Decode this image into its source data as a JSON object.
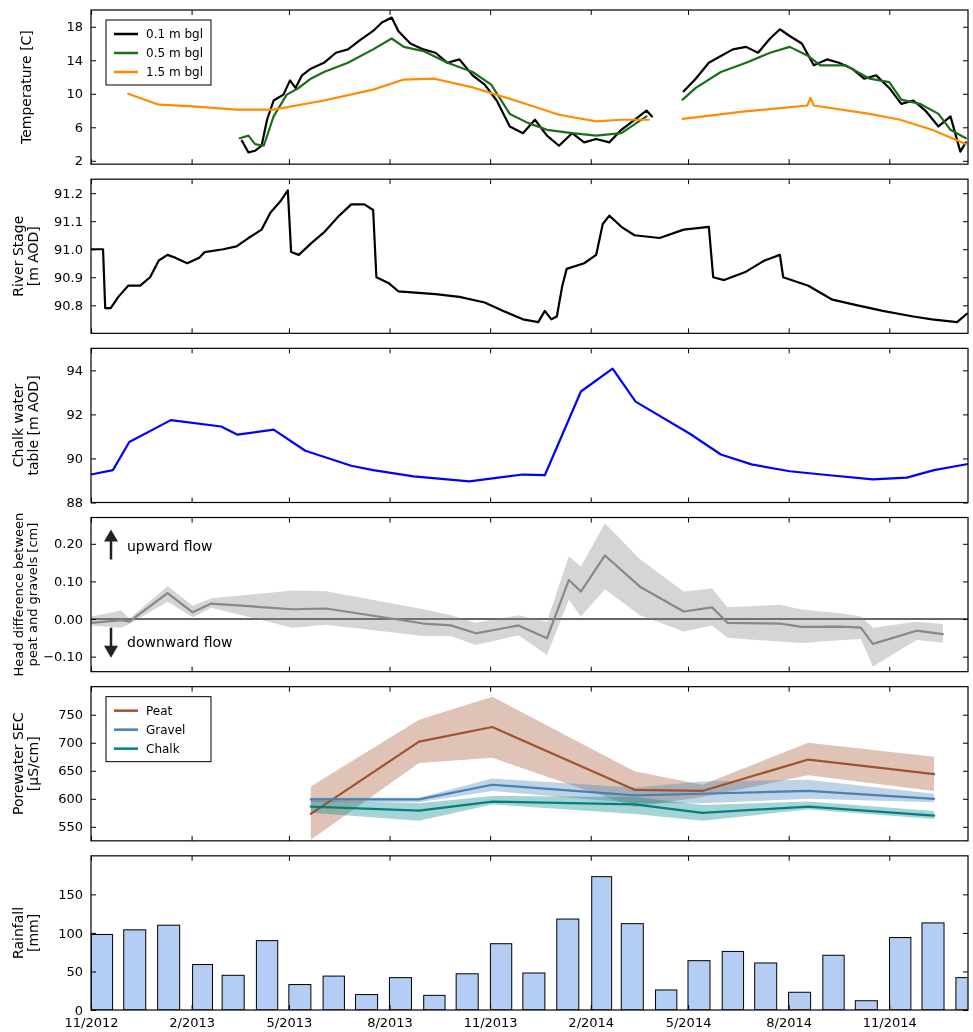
{
  "chart_data": [
    {
      "type": "line",
      "ylabel": "Temperature [C]",
      "xlim": [
        "2012-11-01",
        "2015-01-12"
      ],
      "ylim": [
        1.6,
        20
      ],
      "yticks": [
        2,
        6,
        10,
        14,
        18
      ],
      "tick_labels": "y",
      "legend": "top left",
      "xticks": [
        {
          "value": "2012-11-01",
          "label": null
        },
        {
          "value": "2013-02-01",
          "label": null
        },
        {
          "value": "2013-05-01",
          "label": null
        },
        {
          "value": "2013-08-01",
          "label": null
        },
        {
          "value": "2013-11-01",
          "label": null
        },
        {
          "value": "2014-02-01",
          "label": null
        },
        {
          "value": "2014-05-01",
          "label": null
        },
        {
          "value": "2014-08-01",
          "label": null
        },
        {
          "value": "2014-11-01",
          "label": null
        }
      ],
      "series": [
        {
          "name": "0.1 m bgl",
          "color": "#000000",
          "x": [
            "2013-03-19",
            "2013-03-25",
            "2013-03-31",
            "2013-04-06",
            "2013-04-11",
            "2013-04-17",
            "2013-04-26",
            "2013-05-02",
            "2013-05-07",
            "2013-05-13",
            "2013-05-21",
            "2013-06-02",
            "2013-06-13",
            "2013-06-24",
            "2013-07-05",
            "2013-07-17",
            "2013-07-25",
            "2013-08-03",
            "2013-08-09",
            "2013-08-20",
            "2013-09-01",
            "2013-09-12",
            "2013-09-23",
            "2013-10-04",
            "2013-10-16",
            "2013-10-27",
            "2013-11-07",
            "2013-11-19",
            "2013-12-01",
            "2013-12-12",
            "2013-12-23",
            "2014-01-03",
            "2014-01-15",
            "2014-01-26",
            "2014-02-06",
            "2014-02-18",
            "2014-03-01",
            "2014-03-13",
            "2014-03-24",
            "2014-03-29",
            "2014-04-12",
            "2014-04-27",
            "2014-05-08",
            "2014-05-20",
            "2014-05-31",
            "2014-06-11",
            "2014-06-23",
            "2014-07-04",
            "2014-07-15",
            "2014-07-24",
            "2014-08-02",
            "2014-08-13",
            "2014-08-24",
            "2014-09-05",
            "2014-09-16",
            "2014-09-28",
            "2014-10-09",
            "2014-10-20",
            "2014-11-01",
            "2014-11-12",
            "2014-11-23",
            "2014-12-04",
            "2014-12-16",
            "2014-12-27",
            "2015-01-05",
            "2015-01-10"
          ],
          "values": [
            4.4,
            3.0,
            3.2,
            3.8,
            6.9,
            9.2,
            9.9,
            11.6,
            10.7,
            12.2,
            13.0,
            13.7,
            14.9,
            15.3,
            16.4,
            17.5,
            18.5,
            19.1,
            17.5,
            16.0,
            15.3,
            14.9,
            13.7,
            14.1,
            12.2,
            11.1,
            9.2,
            6.1,
            5.3,
            6.9,
            5.0,
            3.8,
            5.3,
            4.2,
            4.6,
            4.2,
            5.7,
            6.9,
            8.0,
            7.3,
            null,
            10.3,
            11.8,
            13.7,
            14.5,
            15.3,
            15.6,
            14.9,
            16.6,
            17.7,
            16.9,
            16.0,
            13.4,
            14.1,
            13.7,
            13.0,
            11.8,
            12.2,
            10.7,
            8.8,
            9.2,
            8.0,
            6.1,
            7.3,
            3.1,
            4.2
          ]
        },
        {
          "name": "0.5 m bgl",
          "color": "#1a6e1a",
          "x": [
            "2013-03-17",
            "2013-03-25",
            "2013-03-31",
            "2013-04-08",
            "2013-04-17",
            "2013-04-29",
            "2013-05-10",
            "2013-05-21",
            "2013-06-02",
            "2013-06-24",
            "2013-07-17",
            "2013-08-03",
            "2013-08-14",
            "2013-09-01",
            "2013-09-23",
            "2013-10-16",
            "2013-11-02",
            "2013-11-19",
            "2013-12-06",
            "2013-12-23",
            "2014-01-15",
            "2014-02-06",
            "2014-03-01",
            "2014-03-24",
            "2014-04-12",
            "2014-04-26",
            "2014-05-08",
            "2014-05-31",
            "2014-06-23",
            "2014-07-15",
            "2014-08-02",
            "2014-08-19",
            "2014-08-30",
            "2014-09-22",
            "2014-10-14",
            "2014-11-01",
            "2014-11-12",
            "2014-11-29",
            "2014-12-16",
            "2014-12-27",
            "2015-01-10"
          ],
          "values": [
            4.7,
            5.0,
            4.0,
            3.8,
            7.3,
            9.9,
            10.7,
            11.8,
            12.6,
            13.7,
            15.3,
            16.6,
            15.6,
            15.1,
            13.7,
            12.6,
            11.1,
            7.6,
            6.5,
            5.7,
            5.3,
            5.0,
            5.3,
            7.3,
            null,
            9.3,
            10.7,
            12.6,
            13.7,
            14.9,
            15.6,
            14.5,
            13.4,
            13.4,
            11.8,
            11.4,
            9.3,
            8.8,
            7.6,
            5.7,
            4.7
          ]
        },
        {
          "name": "1.5 m bgl",
          "color": "#ff8c00",
          "x": [
            "2012-12-05",
            "2013-01-02",
            "2013-02-02",
            "2013-03-14",
            "2013-04-17",
            "2013-06-02",
            "2013-07-17",
            "2013-08-14",
            "2013-09-11",
            "2013-10-15",
            "2013-11-24",
            "2014-01-03",
            "2014-02-06",
            "2014-03-01",
            "2014-03-26",
            "2014-04-12",
            "2014-04-26",
            "2014-06-22",
            "2014-08-18",
            "2014-08-21",
            "2014-08-24",
            "2014-10-14",
            "2014-11-11",
            "2014-12-10",
            "2015-01-10"
          ],
          "values": [
            10.0,
            8.7,
            8.5,
            8.1,
            8.1,
            9.2,
            10.5,
            11.7,
            11.8,
            10.8,
            9.2,
            7.5,
            6.7,
            6.9,
            6.9,
            null,
            7.0,
            7.9,
            8.6,
            9.5,
            8.6,
            7.6,
            6.9,
            5.7,
            4.0
          ]
        }
      ]
    },
    {
      "type": "line",
      "ylabel": "River Stage\n[m AOD]",
      "xlim": [
        "2012-11-01",
        "2015-01-12"
      ],
      "ylim": [
        90.7,
        91.25
      ],
      "yticks": [
        90.8,
        90.9,
        {
          "value": 91,
          "label": "91.0"
        },
        91.1,
        91.2
      ],
      "tick_labels": "y",
      "xticks": [
        {
          "value": "2012-11-01",
          "label": null
        },
        {
          "value": "2013-02-01",
          "label": null
        },
        {
          "value": "2013-05-01",
          "label": null
        },
        {
          "value": "2013-08-01",
          "label": null
        },
        {
          "value": "2013-11-01",
          "label": null
        },
        {
          "value": "2014-02-01",
          "label": null
        },
        {
          "value": "2014-05-01",
          "label": null
        },
        {
          "value": "2014-08-01",
          "label": null
        },
        {
          "value": "2014-11-01",
          "label": null
        }
      ],
      "series": [
        {
          "color": "#000000",
          "x": [
            "2012-11-01",
            "2012-11-09",
            "2012-11-12",
            "2012-11-14",
            "2012-11-19",
            "2012-11-26",
            "2012-12-05",
            "2012-12-16",
            "2012-12-25",
            "2013-01-02",
            "2013-01-10",
            "2013-01-17",
            "2013-01-28",
            "2013-02-08",
            "2013-02-13",
            "2013-03-02",
            "2013-03-14",
            "2013-03-25",
            "2013-04-06",
            "2013-04-14",
            "2013-04-23",
            "2013-04-30",
            "2013-05-03",
            "2013-05-10",
            "2013-05-21",
            "2013-06-02",
            "2013-06-16",
            "2013-06-27",
            "2013-07-09",
            "2013-07-17",
            "2013-07-20",
            "2013-07-31",
            "2013-08-09",
            "2013-09-12",
            "2013-10-04",
            "2013-10-27",
            "2013-11-13",
            "2013-12-01",
            "2013-12-15",
            "2013-12-21",
            "2013-12-27",
            "2014-01-01",
            "2014-01-06",
            "2014-01-10",
            "2014-01-26",
            "2014-02-06",
            "2014-02-12",
            "2014-02-18",
            "2014-03-01",
            "2014-03-13",
            "2014-04-05",
            "2014-04-27",
            "2014-05-20",
            "2014-05-24",
            "2014-06-03",
            "2014-06-23",
            "2014-07-10",
            "2014-07-24",
            "2014-07-27",
            "2014-08-19",
            "2014-09-10",
            "2014-10-03",
            "2014-10-26",
            "2014-11-23",
            "2014-12-10",
            "2015-01-02",
            "2015-01-11"
          ],
          "values": [
            91.0,
            91.0,
            91.0,
            90.79,
            90.79,
            90.83,
            90.87,
            90.87,
            90.9,
            90.96,
            90.98,
            90.97,
            90.95,
            90.97,
            90.99,
            91.0,
            91.01,
            91.04,
            91.07,
            91.13,
            91.17,
            91.21,
            90.99,
            90.98,
            91.02,
            91.06,
            91.12,
            91.16,
            91.16,
            91.14,
            90.9,
            90.88,
            90.85,
            90.84,
            90.83,
            90.81,
            90.78,
            90.75,
            90.74,
            90.78,
            90.75,
            90.76,
            90.87,
            90.93,
            90.95,
            90.98,
            91.09,
            91.12,
            91.08,
            91.05,
            91.04,
            91.07,
            91.08,
            90.9,
            90.89,
            90.92,
            90.96,
            90.98,
            90.9,
            90.87,
            90.82,
            90.8,
            90.78,
            90.76,
            90.75,
            90.74,
            90.77
          ]
        }
      ]
    },
    {
      "type": "line",
      "ylabel": "Chalk water\ntable [m AOD]",
      "xlim": [
        "2012-11-01",
        "2015-01-12"
      ],
      "ylim": [
        88,
        95
      ],
      "yticks": [
        88,
        90,
        92,
        94
      ],
      "tick_labels": "y",
      "xticks": [
        {
          "value": "2012-11-01",
          "label": null
        },
        {
          "value": "2013-02-01",
          "label": null
        },
        {
          "value": "2013-05-01",
          "label": null
        },
        {
          "value": "2013-08-01",
          "label": null
        },
        {
          "value": "2013-11-01",
          "label": null
        },
        {
          "value": "2014-02-01",
          "label": null
        },
        {
          "value": "2014-05-01",
          "label": null
        },
        {
          "value": "2014-08-01",
          "label": null
        },
        {
          "value": "2014-11-01",
          "label": null
        }
      ],
      "series": [
        {
          "color": "#0000ff",
          "x": [
            "2012-11-01",
            "2012-11-21",
            "2012-12-06",
            "2013-01-13",
            "2013-02-28",
            "2013-03-15",
            "2013-04-17",
            "2013-05-16",
            "2013-06-27",
            "2013-07-17",
            "2013-08-23",
            "2013-10-13",
            "2013-12-01",
            "2013-12-21",
            "2014-01-23",
            "2014-02-21",
            "2014-03-14",
            "2014-05-03",
            "2014-05-31",
            "2014-06-28",
            "2014-08-02",
            "2014-09-05",
            "2014-10-17",
            "2014-11-17",
            "2014-12-12",
            "2015-01-12"
          ],
          "values": [
            89.27,
            89.47,
            90.75,
            91.74,
            91.45,
            91.08,
            91.31,
            90.35,
            89.67,
            89.47,
            89.19,
            88.96,
            89.27,
            89.24,
            93.04,
            94.08,
            92.58,
            91.11,
            90.18,
            89.73,
            89.42,
            89.25,
            89.05,
            89.13,
            89.47,
            89.75
          ]
        }
      ]
    },
    {
      "type": "line",
      "ylabel": "Head difference between\npeat and gravels [cm]",
      "xlim": [
        "2012-11-01",
        "2015-01-12"
      ],
      "ylim": [
        -0.14,
        0.27
      ],
      "yticks": [
        {
          "value": -0.1,
          "label": "−0.10"
        },
        {
          "value": 0,
          "label": "0.00"
        },
        {
          "value": 0.1,
          "label": "0.10"
        },
        {
          "value": 0.2,
          "label": "0.20"
        }
      ],
      "tick_labels": "y",
      "xticks": [
        {
          "value": "2012-11-01",
          "label": null
        },
        {
          "value": "2013-02-01",
          "label": null
        },
        {
          "value": "2013-05-01",
          "label": null
        },
        {
          "value": "2013-08-01",
          "label": null
        },
        {
          "value": "2013-11-01",
          "label": null
        },
        {
          "value": "2014-02-01",
          "label": null
        },
        {
          "value": "2014-05-01",
          "label": null
        },
        {
          "value": "2014-08-01",
          "label": null
        },
        {
          "value": "2014-11-01",
          "label": null
        }
      ],
      "ref_lines": [
        {
          "axis": "y",
          "value": 0,
          "color": "#333333"
        }
      ],
      "annotations": [
        "upward flow",
        "downward flow"
      ],
      "series": [
        {
          "color": "#888888",
          "x": [
            "2012-11-01",
            "2012-11-29",
            "2012-12-06",
            "2013-01-10",
            "2013-02-02",
            "2013-02-19",
            "2013-05-04",
            "2013-06-04",
            "2013-09-01",
            "2013-09-26",
            "2013-10-19",
            "2013-11-27",
            "2013-12-23",
            "2014-01-12",
            "2014-01-23",
            "2014-02-14",
            "2014-03-18",
            "2014-04-27",
            "2014-05-23",
            "2014-06-06",
            "2014-07-24",
            "2014-08-13",
            "2014-09-19",
            "2014-10-06",
            "2014-10-17",
            "2014-11-26",
            "2014-12-20"
          ],
          "values": [
            -0.01,
            -0.003,
            -0.007,
            0.069,
            0.018,
            0.041,
            0.026,
            0.028,
            -0.012,
            -0.017,
            -0.038,
            -0.017,
            -0.051,
            0.104,
            0.073,
            0.169,
            0.086,
            0.02,
            0.031,
            -0.01,
            -0.012,
            -0.021,
            -0.02,
            -0.023,
            -0.066,
            -0.031,
            -0.04
          ],
          "upper": [
            0.007,
            0.023,
            0.0,
            0.088,
            0.035,
            0.055,
            0.076,
            0.074,
            0.026,
            0.01,
            -0.01,
            0.01,
            -0.007,
            0.167,
            0.14,
            0.255,
            0.159,
            0.073,
            0.081,
            0.031,
            0.038,
            0.025,
            0.015,
            0.007,
            -0.023,
            -0.007,
            -0.013
          ],
          "lower": [
            -0.017,
            -0.023,
            -0.013,
            0.046,
            0.005,
            0.03,
            -0.023,
            -0.015,
            -0.045,
            -0.045,
            -0.069,
            -0.043,
            -0.096,
            0.051,
            0.007,
            0.079,
            0.01,
            -0.033,
            -0.017,
            -0.05,
            -0.06,
            -0.064,
            -0.056,
            -0.053,
            -0.126,
            -0.056,
            -0.063
          ]
        }
      ]
    },
    {
      "type": "line",
      "ylabel": "Porewater SEC\n[µS/cm]",
      "xlim": [
        "2012-11-01",
        "2015-01-12"
      ],
      "ylim": [
        525,
        800
      ],
      "yticks": [
        550,
        600,
        650,
        700,
        750
      ],
      "tick_labels": "y",
      "legend": "top left",
      "xticks": [
        {
          "value": "2012-11-01",
          "label": null
        },
        {
          "value": "2013-02-01",
          "label": null
        },
        {
          "value": "2013-05-01",
          "label": null
        },
        {
          "value": "2013-08-01",
          "label": null
        },
        {
          "value": "2013-11-01",
          "label": null
        },
        {
          "value": "2014-02-01",
          "label": null
        },
        {
          "value": "2014-05-01",
          "label": null
        },
        {
          "value": "2014-08-01",
          "label": null
        },
        {
          "value": "2014-11-01",
          "label": null
        }
      ],
      "x": [
        "2013-05-21",
        "2013-08-28",
        "2013-11-03",
        "2014-03-13",
        "2014-05-14",
        "2014-08-19",
        "2014-12-12"
      ],
      "series": [
        {
          "name": "Peat",
          "color": "#a0522d",
          "values": [
            573,
            702,
            728,
            616,
            614,
            670,
            644
          ],
          "upper": [
            622,
            741,
            782,
            649,
            625,
            700,
            675
          ],
          "lower": [
            527,
            664,
            673,
            586,
            603,
            642,
            614
          ]
        },
        {
          "name": "Gravel",
          "color": "#4682b4",
          "values": [
            599,
            599,
            625,
            606,
            609,
            614,
            600
          ],
          "upper": [
            602,
            602,
            636,
            620,
            631,
            634,
            609
          ],
          "lower": [
            594,
            594,
            614,
            592,
            592,
            600,
            594
          ]
        },
        {
          "name": "Chalk",
          "color": "#008080",
          "values": [
            586,
            579,
            595,
            590,
            575,
            586,
            570
          ],
          "upper": [
            597,
            592,
            605,
            603,
            589,
            595,
            578
          ],
          "lower": [
            575,
            561,
            590,
            573,
            561,
            581,
            564
          ]
        }
      ]
    },
    {
      "type": "bar",
      "ylabel": "Rainfall\n[mm]",
      "xlim": [
        "2012-11-01",
        "2015-01-12"
      ],
      "ylim": [
        0,
        200
      ],
      "yticks": [
        0,
        50,
        100,
        150
      ],
      "xticks": [
        {
          "value": "2012-11-01",
          "label": "11/2012"
        },
        {
          "value": "2013-02-01",
          "label": "2/2013"
        },
        {
          "value": "2013-05-01",
          "label": "5/2013"
        },
        {
          "value": "2013-08-01",
          "label": "8/2013"
        },
        {
          "value": "2013-11-01",
          "label": "11/2013"
        },
        {
          "value": "2014-02-01",
          "label": "2/2014"
        },
        {
          "value": "2014-05-01",
          "label": "5/2014"
        },
        {
          "value": "2014-08-01",
          "label": "8/2014"
        },
        {
          "value": "2014-11-01",
          "label": "11/2014"
        }
      ],
      "x": [
        "2012-11-11",
        "2012-12-11",
        "2013-01-11",
        "2013-02-11",
        "2013-03-11",
        "2013-04-11",
        "2013-05-11",
        "2013-06-11",
        "2013-07-11",
        "2013-08-11",
        "2013-09-11",
        "2013-10-11",
        "2013-11-11",
        "2013-12-11",
        "2014-01-11",
        "2014-02-11",
        "2014-03-11",
        "2014-04-11",
        "2014-05-11",
        "2014-06-11",
        "2014-07-11",
        "2014-08-11",
        "2014-09-11",
        "2014-10-11",
        "2014-11-11",
        "2014-12-11",
        "2015-01-11"
      ],
      "values": [
        98,
        104,
        110,
        59,
        45,
        90,
        33,
        44,
        20,
        42,
        19,
        47,
        86,
        48,
        118,
        173,
        112,
        26,
        64,
        76,
        61,
        23,
        71,
        12,
        94,
        113,
        42
      ],
      "color": "#b3cdf5"
    }
  ]
}
